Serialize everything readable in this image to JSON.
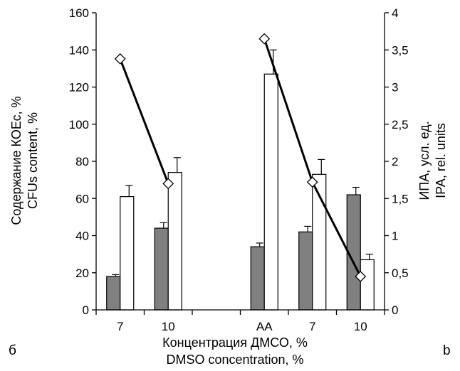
{
  "chart_data": {
    "type": "bar",
    "categories": [
      "7",
      "10",
      "",
      "AA",
      "7",
      "10"
    ],
    "series": [
      {
        "values": [
          18,
          44,
          null,
          34,
          42,
          62
        ],
        "errors": [
          1,
          3,
          null,
          2,
          3,
          4
        ],
        "color": "#808080",
        "axis": "left"
      },
      {
        "values": [
          61,
          74,
          null,
          127,
          73,
          27
        ],
        "errors": [
          6,
          8,
          null,
          13,
          8,
          3
        ],
        "color": "#ffffff",
        "axis": "left"
      },
      {
        "type": "line",
        "values": [
          3.38,
          1.7,
          null,
          3.65,
          1.72,
          0.45
        ],
        "marker": "diamond",
        "color": "#000000",
        "axis": "right"
      }
    ],
    "xlabel": [
      "Концентрация ДМСО, %",
      "DMSO concentration, %"
    ],
    "ylabel_left": [
      "Содержание КОЕс, %",
      "CFUs content, %"
    ],
    "ylabel_right": [
      "ИПА, усл. ед.",
      "IPA, rel. units"
    ],
    "ylim_left": [
      0,
      160
    ],
    "ylim_right": [
      0,
      4
    ],
    "yticks_left": [
      "0",
      "20",
      "40",
      "60",
      "80",
      "100",
      "120",
      "140",
      "160"
    ],
    "yticks_right": [
      "0",
      "0,5",
      "1",
      "1,5",
      "2",
      "2,5",
      "3",
      "3,5",
      "4"
    ],
    "grid": false,
    "legend": "none"
  },
  "corner_labels": {
    "left": "б",
    "right": "b"
  }
}
